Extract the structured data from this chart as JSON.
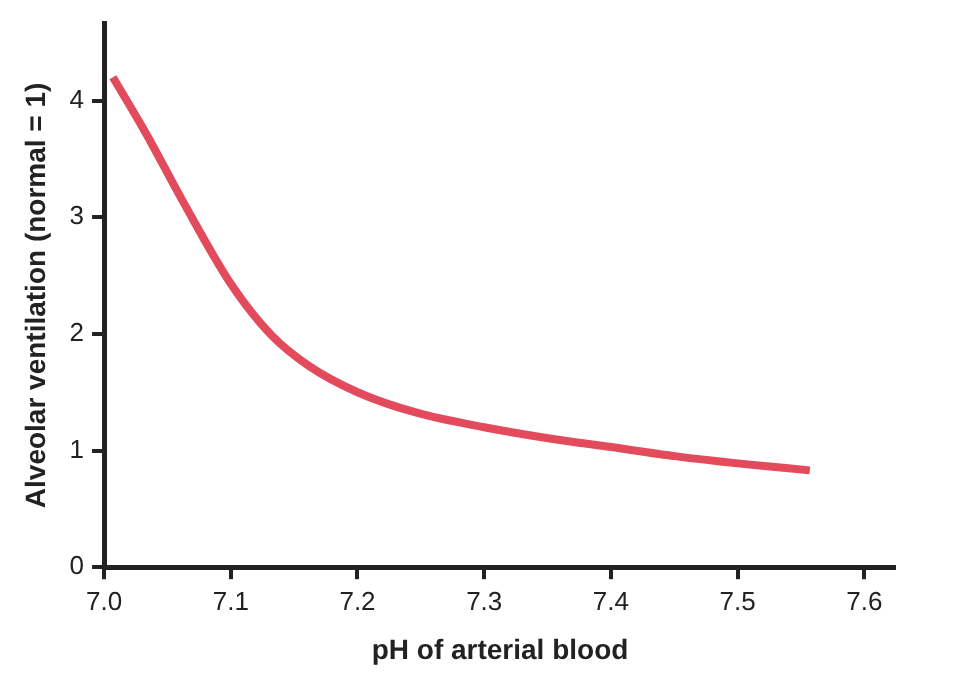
{
  "chart_data": {
    "type": "line",
    "xlabel": "pH of arterial blood",
    "ylabel": "Alveolar ventilation (normal = 1)",
    "xlim": [
      7.0,
      7.625
    ],
    "xticks": [
      {
        "value": 7.0,
        "label": "7.0"
      },
      7.1,
      7.2,
      7.3,
      7.4,
      7.5,
      7.6
    ],
    "ylim": [
      0,
      4.66
    ],
    "yticks": [
      0,
      1,
      2,
      3,
      4
    ],
    "grid": false,
    "legend": false,
    "marker": "none",
    "line_style": "solid",
    "series": [
      {
        "color": "#e34a5c",
        "x": [
          7.007,
          7.033,
          7.062,
          7.1,
          7.132,
          7.161,
          7.2,
          7.248,
          7.3,
          7.348,
          7.4,
          7.452,
          7.5,
          7.557
        ],
        "values": [
          4.2,
          3.72,
          3.14,
          2.43,
          1.99,
          1.73,
          1.5,
          1.32,
          1.2,
          1.11,
          1.03,
          0.95,
          0.89,
          0.83
        ]
      }
    ]
  }
}
